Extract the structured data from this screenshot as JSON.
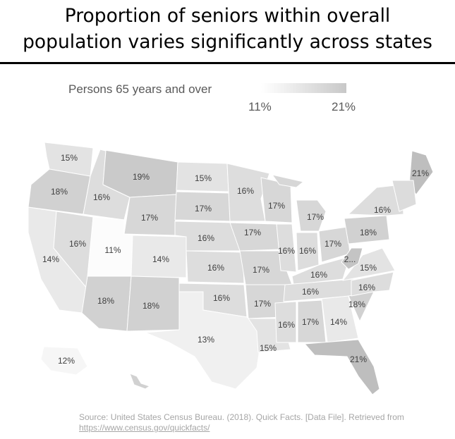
{
  "title": {
    "line1": "Proportion of seniors within overall",
    "line2": "population varies significantly across states"
  },
  "legend": {
    "label": "Persons 65 years and over",
    "min_label": "11%",
    "max_label": "21%",
    "min_color": "#ffffff",
    "max_color": "#c8c8c8"
  },
  "map_data": {
    "type": "choropleth",
    "metric": "Persons 65 years and over",
    "unit": "%",
    "regions": [
      {
        "id": "WA",
        "value": 15,
        "label": "15%"
      },
      {
        "id": "OR",
        "value": 18,
        "label": "18%"
      },
      {
        "id": "CA",
        "value": 14,
        "label": "14%"
      },
      {
        "id": "NV",
        "value": 16,
        "label": "16%"
      },
      {
        "id": "ID",
        "value": 16,
        "label": "16%"
      },
      {
        "id": "MT",
        "value": 19,
        "label": "19%"
      },
      {
        "id": "WY",
        "value": 17,
        "label": "17%"
      },
      {
        "id": "UT",
        "value": 11,
        "label": "11%"
      },
      {
        "id": "CO",
        "value": 14,
        "label": "14%"
      },
      {
        "id": "AZ",
        "value": 18,
        "label": "18%"
      },
      {
        "id": "NM",
        "value": 18,
        "label": "18%"
      },
      {
        "id": "ND",
        "value": 15,
        "label": "15%"
      },
      {
        "id": "SD",
        "value": 17,
        "label": "17%"
      },
      {
        "id": "NE",
        "value": 16,
        "label": "16%"
      },
      {
        "id": "KS",
        "value": 16,
        "label": "16%"
      },
      {
        "id": "OK",
        "value": 16,
        "label": "16%"
      },
      {
        "id": "TX",
        "value": 13,
        "label": "13%"
      },
      {
        "id": "MN",
        "value": 16,
        "label": "16%"
      },
      {
        "id": "IA",
        "value": 17,
        "label": "17%"
      },
      {
        "id": "MO",
        "value": 17,
        "label": "17%"
      },
      {
        "id": "AR",
        "value": 17,
        "label": "17%"
      },
      {
        "id": "LA",
        "value": 15,
        "label": "15%"
      },
      {
        "id": "WI",
        "value": 17,
        "label": "17%"
      },
      {
        "id": "IL",
        "value": 16,
        "label": "16%"
      },
      {
        "id": "MI",
        "value": 17,
        "label": "17%"
      },
      {
        "id": "IN",
        "value": 16,
        "label": "16%"
      },
      {
        "id": "OH",
        "value": 17,
        "label": "17%"
      },
      {
        "id": "KY",
        "value": 16,
        "label": "16%"
      },
      {
        "id": "TN",
        "value": 16,
        "label": "16%"
      },
      {
        "id": "MS",
        "value": 16,
        "label": "16%"
      },
      {
        "id": "AL",
        "value": 17,
        "label": "17%"
      },
      {
        "id": "GA",
        "value": 14,
        "label": "14%"
      },
      {
        "id": "FL",
        "value": 21,
        "label": "21%"
      },
      {
        "id": "SC",
        "value": 18,
        "label": "18%"
      },
      {
        "id": "NC",
        "value": 16,
        "label": "16%"
      },
      {
        "id": "VA",
        "value": 15,
        "label": "15%"
      },
      {
        "id": "WV",
        "value": 20,
        "label": "2..."
      },
      {
        "id": "PA",
        "value": 18,
        "label": "18%"
      },
      {
        "id": "NY",
        "value": 16,
        "label": "16%"
      },
      {
        "id": "ME",
        "value": 21,
        "label": "21%"
      },
      {
        "id": "AK",
        "value": 12,
        "label": "12%"
      },
      {
        "id": "HI",
        "value": 18,
        "label": ""
      }
    ]
  },
  "source": {
    "text": "Source: United States Census Bureau. (2018). Quick Facts. [Data File]. Retrieved from ",
    "link": "https://www.census.gov/quickfacts/"
  }
}
